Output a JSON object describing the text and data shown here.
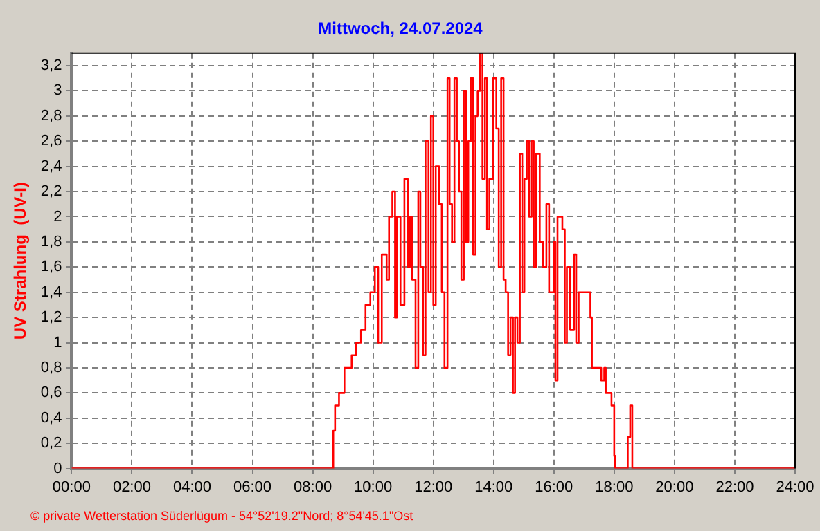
{
  "chart_data": {
    "type": "step",
    "title": "Mittwoch, 24.07.2024",
    "ylabel": "UV Strahlung  (UV-I)",
    "annotations": [
      "© private Wetterstation Süderlügum - 54°52'19.2\"Nord; 8°54'45.1\"Ost"
    ],
    "xlim": [
      0,
      24
    ],
    "xticks": [
      {
        "value": 0,
        "label": "00:00"
      },
      {
        "value": 2,
        "label": "02:00"
      },
      {
        "value": 4,
        "label": "04:00"
      },
      {
        "value": 6,
        "label": "06:00"
      },
      {
        "value": 8,
        "label": "08:00"
      },
      {
        "value": 10,
        "label": "10:00"
      },
      {
        "value": 12,
        "label": "12:00"
      },
      {
        "value": 14,
        "label": "14:00"
      },
      {
        "value": 16,
        "label": "16:00"
      },
      {
        "value": 18,
        "label": "18:00"
      },
      {
        "value": 20,
        "label": "20:00"
      },
      {
        "value": 22,
        "label": "22:00"
      },
      {
        "value": 24,
        "label": "24:00"
      }
    ],
    "ylim": [
      0,
      3.3
    ],
    "yticks": [
      0,
      {
        "value": 0.2,
        "label": "0,2"
      },
      {
        "value": 0.4,
        "label": "0,4"
      },
      {
        "value": 0.6,
        "label": "0,6"
      },
      {
        "value": 0.8,
        "label": "0,8"
      },
      1,
      {
        "value": 1.2,
        "label": "1,2"
      },
      {
        "value": 1.4,
        "label": "1,4"
      },
      {
        "value": 1.6,
        "label": "1,6"
      },
      {
        "value": 1.8,
        "label": "1,8"
      },
      2,
      {
        "value": 2.2,
        "label": "2,2"
      },
      {
        "value": 2.4,
        "label": "2,4"
      },
      {
        "value": 2.6,
        "label": "2,6"
      },
      {
        "value": 2.8,
        "label": "2,8"
      },
      3,
      {
        "value": 3.2,
        "label": "3,2"
      }
    ],
    "grid": true,
    "legend": false,
    "marker": "none",
    "line_style": "solid",
    "series": [
      {
        "color": "#ff0000",
        "x": [
          0,
          8.68,
          8.74,
          8.87,
          9.05,
          9.29,
          9.44,
          9.6,
          9.75,
          9.91,
          10.06,
          10.17,
          10.29,
          10.45,
          10.53,
          10.64,
          10.73,
          10.79,
          10.91,
          11.04,
          11.15,
          11.22,
          11.3,
          11.41,
          11.5,
          11.57,
          11.66,
          11.74,
          11.84,
          11.92,
          12,
          12.08,
          12.19,
          12.28,
          12.37,
          12.47,
          12.54,
          12.62,
          12.7,
          12.78,
          12.85,
          12.93,
          13.01,
          13.09,
          13.16,
          13.24,
          13.32,
          13.4,
          13.47,
          13.55,
          13.63,
          13.71,
          13.78,
          13.86,
          13.98,
          14.09,
          14.17,
          14.25,
          14.33,
          14.4,
          14.48,
          14.56,
          14.64,
          14.71,
          14.79,
          14.87,
          14.95,
          15.02,
          15.1,
          15.18,
          15.26,
          15.33,
          15.41,
          15.53,
          15.64,
          15.75,
          15.84,
          16,
          16.05,
          16.12,
          16.28,
          16.36,
          16.43,
          16.54,
          16.67,
          16.74,
          16.82,
          17.16,
          17.21,
          17.26,
          17.47,
          17.57,
          17.67,
          17.72,
          17.83,
          17.91,
          18,
          18.03,
          18.45,
          18.53,
          18.6,
          24
        ],
        "values": [
          0,
          0.3,
          0.5,
          0.6,
          0.8,
          0.9,
          1,
          1.1,
          1.3,
          1.4,
          1.6,
          1,
          1.7,
          1.5,
          2,
          2.2,
          1.2,
          2,
          1.3,
          2.3,
          1.6,
          2,
          1.5,
          0.8,
          2.2,
          1.6,
          0.9,
          2.6,
          1.4,
          2.8,
          1.3,
          2.4,
          2.1,
          1.4,
          0.8,
          3.1,
          2.1,
          1.8,
          3.1,
          2.6,
          2.2,
          1.5,
          3,
          1.8,
          2.6,
          3.1,
          1.7,
          2.8,
          3,
          3.3,
          2.3,
          3.1,
          1.9,
          2.3,
          3.1,
          2.7,
          1.6,
          3.1,
          1.5,
          1.4,
          0.9,
          1.2,
          0.6,
          1.2,
          1,
          2.5,
          1.4,
          2.3,
          2.6,
          2,
          2.6,
          1.6,
          2.5,
          1.8,
          1.6,
          2.1,
          1.4,
          1.8,
          0.7,
          2,
          1.9,
          1,
          1.6,
          1.1,
          1.7,
          1,
          1.4,
          1.4,
          1.2,
          0.8,
          0.8,
          0.7,
          0.8,
          0.6,
          0.6,
          0.5,
          0.1,
          0,
          0.25,
          0.5,
          0,
          0
        ]
      }
    ]
  }
}
